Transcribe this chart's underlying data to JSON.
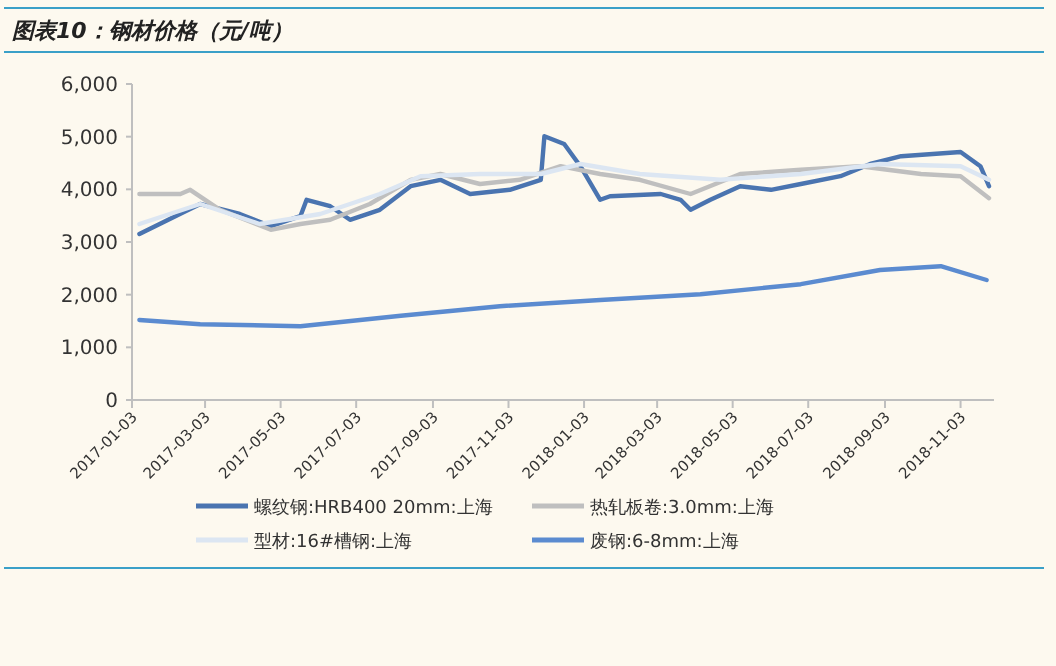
{
  "chart_data": {
    "type": "line",
    "title": "图表10：钢材价格（元/吨）",
    "xlim": [
      "2017-01-03",
      "2018-11-30"
    ],
    "xticks": [
      "2017-01-03",
      "2017-03-03",
      "2017-05-03",
      "2017-07-03",
      "2017-09-03",
      "2017-11-03",
      "2018-01-03",
      "2018-03-03",
      "2018-05-03",
      "2018-07-03",
      "2018-09-03",
      "2018-11-03"
    ],
    "ylim": [
      0,
      6000
    ],
    "yticks": [
      {
        "value": 0,
        "label": "0"
      },
      {
        "value": 1000,
        "label": "1,000"
      },
      {
        "value": 2000,
        "label": "2,000"
      },
      {
        "value": 3000,
        "label": "3,000"
      },
      {
        "value": 4000,
        "label": "4,000"
      },
      {
        "value": 5000,
        "label": "5,000"
      },
      {
        "value": 6000,
        "label": "6,000"
      }
    ],
    "legend": "bottom",
    "series": [
      {
        "name": "螺纹钢:HRB400 20mm:上海",
        "color": "#4a74b0",
        "x": [
          "2017-01-09",
          "2017-02-27",
          "2017-03-31",
          "2017-04-25",
          "2017-05-19",
          "2017-05-24",
          "2017-06-12",
          "2017-06-28",
          "2017-07-22",
          "2017-08-16",
          "2017-09-09",
          "2017-10-03",
          "2017-11-04",
          "2017-11-29",
          "2017-12-02",
          "2017-12-18",
          "2017-12-31",
          "2018-01-16",
          "2018-01-24",
          "2018-03-06",
          "2018-03-22",
          "2018-03-30",
          "2018-04-15",
          "2018-05-09",
          "2018-06-03",
          "2018-06-27",
          "2018-07-29",
          "2018-08-22",
          "2018-09-16",
          "2018-11-03",
          "2018-11-19",
          "2018-11-26"
        ],
        "values": [
          3150,
          3720,
          3530,
          3300,
          3490,
          3800,
          3680,
          3420,
          3610,
          4060,
          4180,
          3910,
          3990,
          4180,
          5010,
          4860,
          4440,
          3800,
          3870,
          3910,
          3800,
          3610,
          3800,
          4060,
          3990,
          4100,
          4250,
          4480,
          4630,
          4710,
          4440,
          4060
        ]
      },
      {
        "name": "热轧板卷:3.0mm:上海",
        "color": "#bfbfbf",
        "x": [
          "2017-01-09",
          "2017-02-11",
          "2017-02-19",
          "2017-03-15",
          "2017-04-25",
          "2017-05-19",
          "2017-06-12",
          "2017-07-14",
          "2017-08-16",
          "2017-09-09",
          "2017-10-11",
          "2017-11-12",
          "2017-12-15",
          "2018-01-16",
          "2018-02-17",
          "2018-03-30",
          "2018-05-09",
          "2018-06-27",
          "2018-08-14",
          "2018-10-02",
          "2018-11-03",
          "2018-11-26"
        ],
        "values": [
          3910,
          3910,
          3990,
          3610,
          3230,
          3340,
          3420,
          3720,
          4180,
          4290,
          4100,
          4180,
          4440,
          4290,
          4180,
          3910,
          4290,
          4370,
          4440,
          4290,
          4250,
          3830
        ]
      },
      {
        "name": "型材:16#槽钢:上海",
        "color": "#dce6f2",
        "x": [
          "2017-01-09",
          "2017-02-27",
          "2017-04-16",
          "2017-06-04",
          "2017-07-22",
          "2017-08-24",
          "2017-10-11",
          "2017-11-29",
          "2017-12-31",
          "2018-02-17",
          "2018-04-23",
          "2018-06-27",
          "2018-08-30",
          "2018-11-03",
          "2018-11-26"
        ],
        "values": [
          3340,
          3720,
          3340,
          3530,
          3910,
          4250,
          4290,
          4290,
          4480,
          4290,
          4180,
          4290,
          4480,
          4440,
          4180
        ]
      },
      {
        "name": "废钢:6-8mm:上海",
        "color": "#5b8bd0",
        "x": [
          "2017-01-09",
          "2017-02-27",
          "2017-05-19",
          "2017-08-08",
          "2017-10-27",
          "2018-01-16",
          "2018-04-07",
          "2018-06-27",
          "2018-08-30",
          "2018-10-18",
          "2018-11-24"
        ],
        "values": [
          1520,
          1440,
          1400,
          1600,
          1780,
          1900,
          2010,
          2200,
          2470,
          2540,
          2280
        ]
      }
    ]
  }
}
